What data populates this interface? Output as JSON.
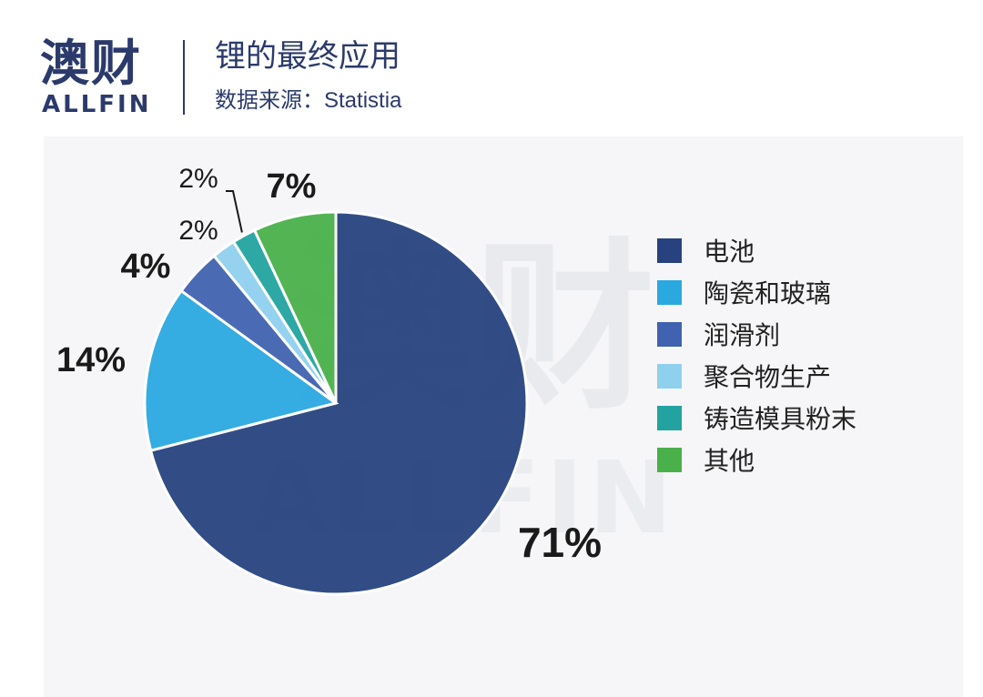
{
  "brand": {
    "name_cn": "澳财",
    "name_en": "ALLFIN",
    "color": "#2b3a6b"
  },
  "header": {
    "title": "锂的最终应用",
    "source_prefix": "数据来源：",
    "source_name": "Statistia"
  },
  "watermark": {
    "text_cn": "澳财",
    "text_en": "ALLFIN"
  },
  "chart_data": {
    "type": "pie",
    "title": "锂的最终应用",
    "start_angle_deg": 0,
    "direction": "clockwise",
    "legend_position": "right",
    "slices": [
      {
        "label": "电池",
        "value": 71,
        "display": "71%",
        "color": "#27427e"
      },
      {
        "label": "陶瓷和玻璃",
        "value": 14,
        "display": "14%",
        "color": "#2aa8e0"
      },
      {
        "label": "润滑剂",
        "value": 4,
        "display": "4%",
        "color": "#4062b0"
      },
      {
        "label": "聚合物生产",
        "value": 2,
        "display": "2%",
        "color": "#8fd0ee"
      },
      {
        "label": "铸造模具粉末",
        "value": 2,
        "display": "2%",
        "color": "#23a3a0"
      },
      {
        "label": "其他",
        "value": 7,
        "display": "7%",
        "color": "#4ab04a"
      }
    ]
  }
}
